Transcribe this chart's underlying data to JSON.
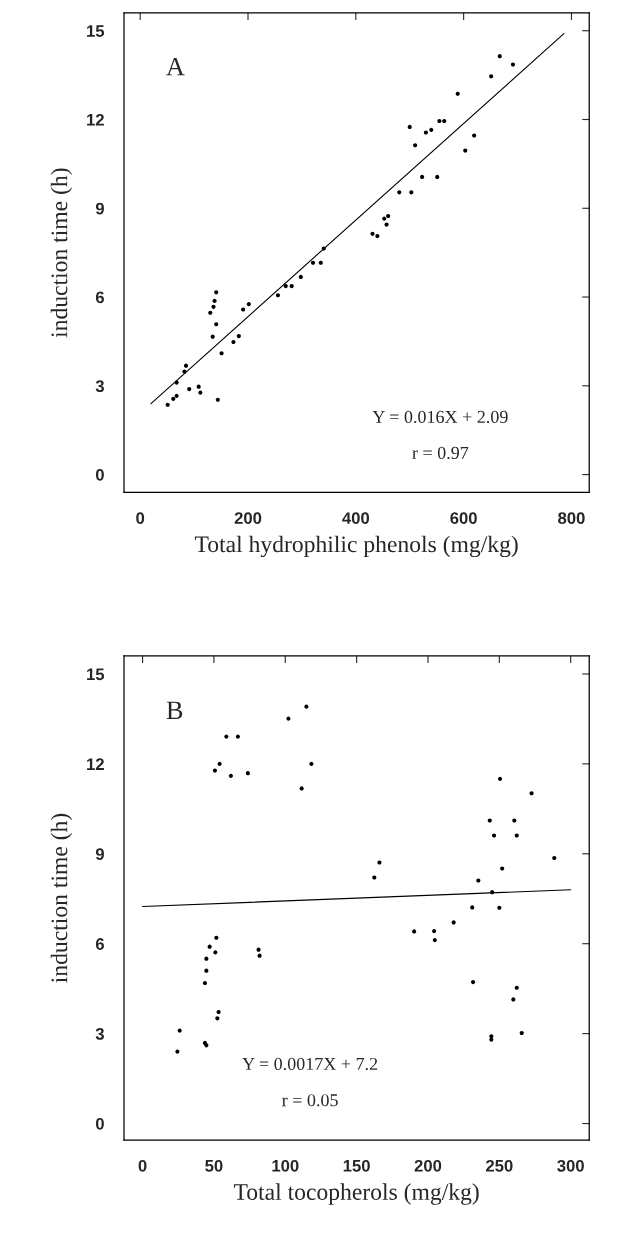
{
  "chart_data": [
    {
      "type": "scatter",
      "xlabel": "Total hydrophilic phenols (mg/kg)",
      "ylabel": "induction time (h)",
      "annotations": [
        "A",
        "Y = 0.016X + 2.09",
        "r = 0.97"
      ],
      "xlim": [
        -30,
        833
      ],
      "xticks": [
        0,
        200,
        400,
        600,
        800
      ],
      "ylim": [
        -0.6,
        15.6
      ],
      "yticks": [
        0,
        3,
        6,
        9,
        12,
        15
      ],
      "grid": false,
      "legend": false,
      "series": [
        {
          "marker": "circle",
          "color": "#000000",
          "x": [
            667,
            691.5,
            651,
            589,
            555,
            564,
            500,
            530,
            540,
            619.5,
            510,
            603,
            523,
            551,
            480.6,
            503,
            452.7,
            460,
            457,
            431,
            440,
            340.5,
            320.6,
            335,
            298,
            270,
            281,
            255.5,
            141,
            138,
            136,
            130,
            141,
            134.5,
            201.5,
            191,
            183,
            173,
            151,
            85,
            82,
            67.6,
            91,
            108.5,
            111.6,
            67.6,
            61.4,
            51,
            144
          ],
          "values": [
            14.14,
            13.86,
            13.46,
            12.87,
            11.95,
            11.95,
            11.75,
            11.56,
            11.65,
            11.46,
            11.13,
            10.95,
            10.06,
            10.06,
            9.54,
            9.54,
            8.65,
            8.74,
            8.45,
            8.14,
            8.06,
            7.64,
            7.16,
            7.16,
            6.68,
            6.37,
            6.37,
            6.06,
            6.16,
            5.87,
            5.67,
            5.47,
            5.08,
            4.66,
            5.76,
            5.58,
            4.68,
            4.48,
            4.1,
            3.68,
            3.48,
            3.11,
            2.89,
            2.97,
            2.77,
            2.66,
            2.56,
            2.36,
            2.53
          ]
        },
        {
          "type": "line",
          "color": "#000000",
          "x": [
            20,
            786
          ],
          "values": [
            2.4,
            14.9
          ]
        }
      ]
    },
    {
      "type": "scatter",
      "xlabel": "Total tocopherols (mg/kg)",
      "ylabel": "induction time (h)",
      "annotations": [
        "B",
        "Y = 0.0017X + 7.2",
        "r = 0.05"
      ],
      "xlim": [
        -13,
        313
      ],
      "xticks": [
        0,
        50,
        100,
        150,
        200,
        250,
        300
      ],
      "ylim": [
        -0.55,
        15.6
      ],
      "yticks": [
        0,
        3,
        6,
        9,
        12,
        15
      ],
      "grid": false,
      "legend": false,
      "series": [
        {
          "marker": "circle",
          "color": "#000000",
          "x": [
            114.8,
            102.2,
            58.7,
            66.8,
            54,
            50.7,
            61.9,
            73.8,
            118.3,
            111.5,
            250.5,
            272.6,
            243.3,
            260.5,
            246.3,
            262.2,
            288.5,
            166,
            162.4,
            252,
            235.3,
            245,
            231,
            250,
            218,
            190.3,
            204.3,
            204.8,
            51.7,
            47,
            51,
            44.7,
            44.7,
            43.7,
            81.3,
            82,
            231.6,
            262.2,
            259.8,
            53.3,
            52.4,
            26,
            265.7,
            244.4,
            244.4,
            43.7,
            44.7,
            24.4
          ],
          "values": [
            13.91,
            13.51,
            12.91,
            12.91,
            12.0,
            11.78,
            11.6,
            11.69,
            12.0,
            11.18,
            11.5,
            11.02,
            10.11,
            10.11,
            9.61,
            9.61,
            8.86,
            8.71,
            8.21,
            8.51,
            8.11,
            7.72,
            7.21,
            7.2,
            6.71,
            6.41,
            6.42,
            6.12,
            6.2,
            5.9,
            5.71,
            5.5,
            5.1,
            4.69,
            5.8,
            5.6,
            4.72,
            4.53,
            4.14,
            3.72,
            3.51,
            3.1,
            3.02,
            2.91,
            2.8,
            2.69,
            2.61,
            2.4
          ]
        },
        {
          "type": "line",
          "color": "#000000",
          "x": [
            0,
            300
          ],
          "values": [
            7.24,
            7.8
          ]
        }
      ]
    }
  ]
}
